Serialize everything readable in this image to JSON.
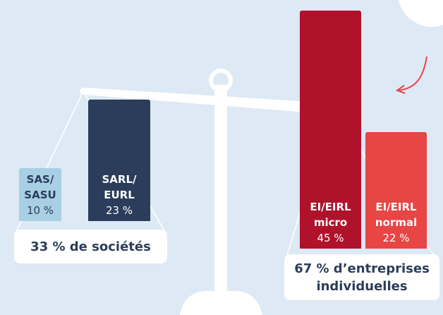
{
  "chart_data": {
    "type": "bar",
    "categories": [
      "SAS/\nSASU",
      "SARL/\nEURL",
      "EI/EIRL\nmicro",
      "EI/EIRL\nnormal"
    ],
    "values": [
      10,
      23,
      45,
      22
    ],
    "value_labels": [
      "10 %",
      "23 %",
      "45 %",
      "22 %"
    ],
    "colors": [
      "#a8cfe3",
      "#2b3d5a",
      "#b0112b",
      "#e84545"
    ],
    "label_colors": [
      "#2b3d5a",
      "#ffffff",
      "#ffffff",
      "#ffffff"
    ],
    "groups": [
      "33 % de sociétés",
      "67 % d’entreprises\nindividuelles"
    ]
  }
}
